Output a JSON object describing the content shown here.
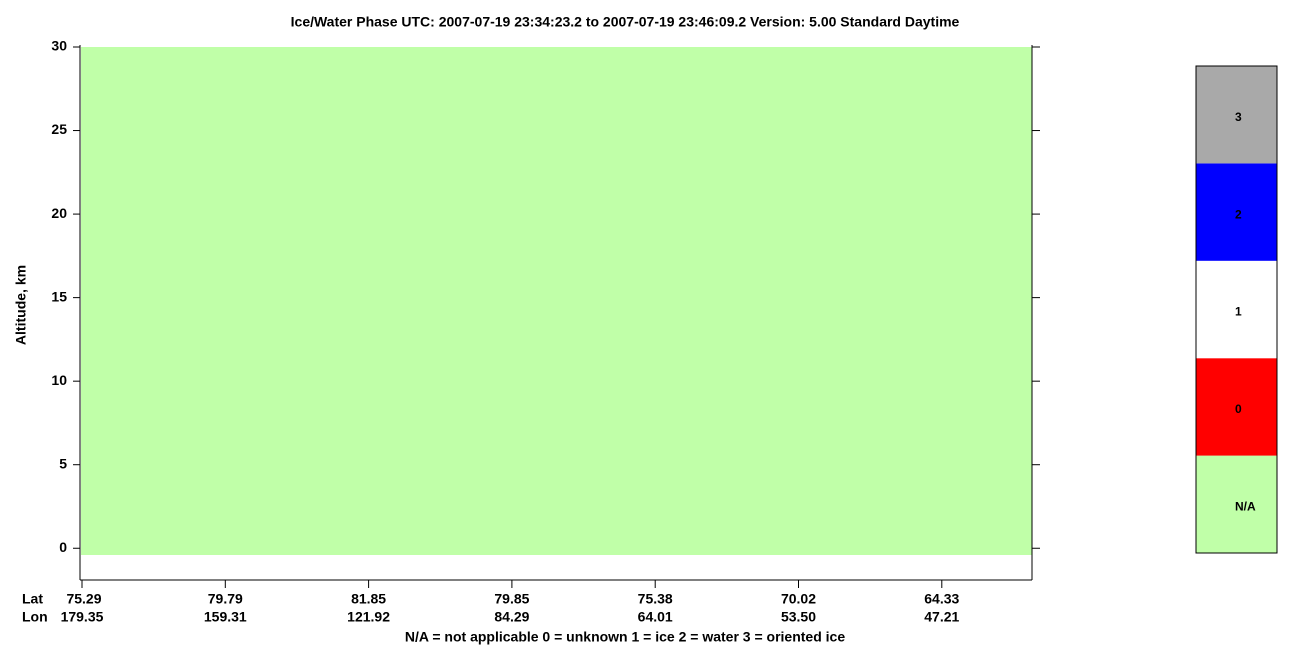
{
  "chart_data": {
    "type": "heatmap",
    "title": "Ice/Water Phase    UTC:  2007-07-19   23:34:23.2  to  2007-07-19   23:46:09.2    Version: 5.00  Standard Daytime",
    "y_label": "Altitude, km",
    "ylim": [
      -1.9,
      30
    ],
    "yticks": [
      0,
      5,
      10,
      15,
      20,
      25,
      30
    ],
    "x_row_labels": [
      "Lat",
      "Lon"
    ],
    "xticks": [
      {
        "lat": "75.29",
        "lon": "179.35"
      },
      {
        "lat": "79.79",
        "lon": "159.31"
      },
      {
        "lat": "81.85",
        "lon": "121.92"
      },
      {
        "lat": "79.85",
        "lon": "84.29"
      },
      {
        "lat": "75.38",
        "lon": "64.01"
      },
      {
        "lat": "70.02",
        "lon": "53.50"
      },
      {
        "lat": "64.33",
        "lon": "47.21"
      }
    ],
    "footnote": "N/A = not applicable    0 = unknown    1 = ice    2 = water    3 = oriented ice",
    "colorbar": {
      "labels": [
        "N/A",
        "0",
        "1",
        "2",
        "3"
      ],
      "colors": [
        "#c0ffa8",
        "#ff0000",
        "#ffffff",
        "#0000ff",
        "#a9a9a9"
      ]
    }
  }
}
